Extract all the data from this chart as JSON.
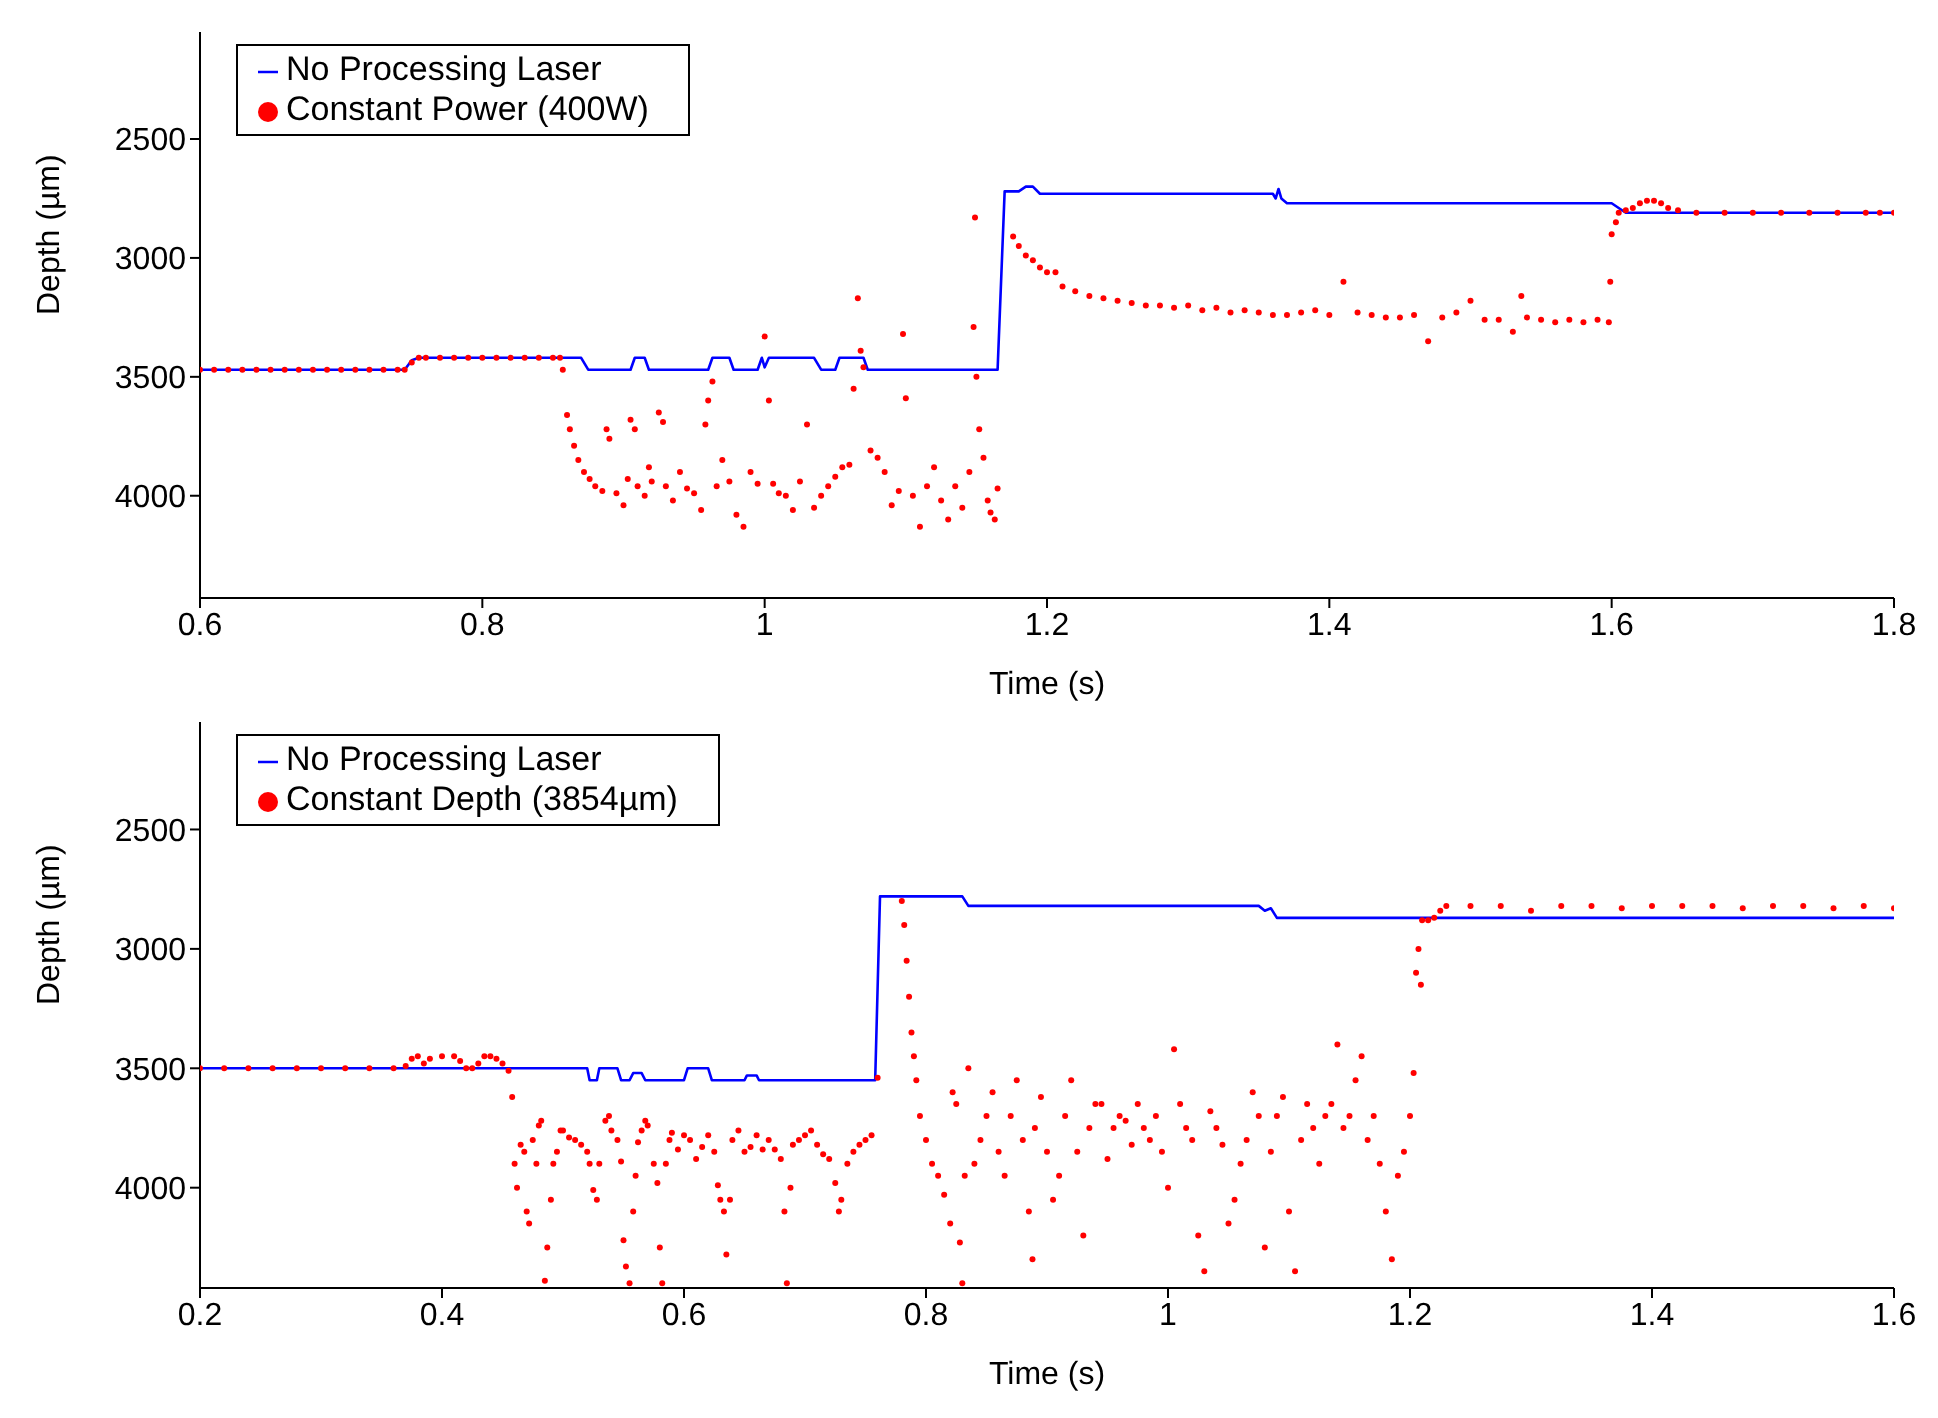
{
  "chart_data": [
    {
      "type": "line",
      "xlabel": "Time (s)",
      "ylabel": "Depth (µm)",
      "xlim": [
        0.6,
        1.8
      ],
      "xticks": [
        0.6,
        0.8,
        1,
        1.2,
        1.4,
        1.6,
        1.8
      ],
      "ylim": [
        4430,
        2050
      ],
      "yticks": [
        2500,
        3000,
        3500,
        4000
      ],
      "grid": false,
      "legend": "top left",
      "series": [
        {
          "name": "No Processing Laser",
          "type": "line",
          "marker": "none",
          "line_style": "solid",
          "color": "#0000ff",
          "x": [
            0.6,
            0.745,
            0.75,
            0.755,
            0.855,
            0.87,
            0.875,
            0.905,
            0.908,
            0.915,
            0.918,
            0.96,
            0.963,
            0.975,
            0.978,
            0.995,
            0.998,
            1.0,
            1.003,
            1.035,
            1.04,
            1.05,
            1.053,
            1.07,
            1.073,
            1.165,
            1.17,
            1.18,
            1.185,
            1.19,
            1.195,
            1.36,
            1.362,
            1.364,
            1.366,
            1.37,
            1.6,
            1.605,
            1.61,
            1.8
          ],
          "values": [
            3470,
            3470,
            3430,
            3420,
            3420,
            3420,
            3470,
            3470,
            3420,
            3420,
            3470,
            3470,
            3420,
            3420,
            3470,
            3470,
            3420,
            3460,
            3420,
            3420,
            3470,
            3470,
            3420,
            3420,
            3470,
            3470,
            2720,
            2720,
            2700,
            2700,
            2730,
            2730,
            2750,
            2710,
            2750,
            2770,
            2770,
            2790,
            2810,
            2810
          ]
        },
        {
          "name": "Constant Power (400W)",
          "type": "scatter",
          "marker": "circle",
          "color": "#ff0000",
          "x": [
            0.6,
            0.61,
            0.62,
            0.63,
            0.64,
            0.65,
            0.66,
            0.67,
            0.68,
            0.69,
            0.7,
            0.71,
            0.72,
            0.73,
            0.74,
            0.745,
            0.75,
            0.755,
            0.76,
            0.77,
            0.78,
            0.79,
            0.8,
            0.81,
            0.82,
            0.83,
            0.84,
            0.85,
            0.855,
            0.857,
            0.86,
            0.862,
            0.865,
            0.868,
            0.872,
            0.876,
            0.88,
            0.885,
            0.888,
            0.89,
            0.895,
            0.9,
            0.903,
            0.905,
            0.908,
            0.91,
            0.915,
            0.918,
            0.92,
            0.925,
            0.928,
            0.93,
            0.935,
            0.94,
            0.945,
            0.95,
            0.955,
            0.958,
            0.96,
            0.963,
            0.966,
            0.97,
            0.975,
            0.98,
            0.985,
            0.99,
            0.995,
            1.0,
            1.003,
            1.006,
            1.01,
            1.015,
            1.02,
            1.025,
            1.03,
            1.035,
            1.04,
            1.045,
            1.05,
            1.055,
            1.06,
            1.063,
            1.066,
            1.068,
            1.07,
            1.075,
            1.08,
            1.085,
            1.09,
            1.095,
            1.098,
            1.1,
            1.105,
            1.11,
            1.115,
            1.12,
            1.125,
            1.13,
            1.135,
            1.14,
            1.145,
            1.148,
            1.149,
            1.15,
            1.152,
            1.155,
            1.158,
            1.16,
            1.163,
            1.165,
            1.176,
            1.18,
            1.185,
            1.19,
            1.195,
            1.2,
            1.206,
            1.211,
            1.22,
            1.23,
            1.24,
            1.25,
            1.26,
            1.27,
            1.28,
            1.29,
            1.3,
            1.31,
            1.32,
            1.33,
            1.34,
            1.35,
            1.36,
            1.37,
            1.38,
            1.39,
            1.4,
            1.41,
            1.42,
            1.43,
            1.44,
            1.45,
            1.46,
            1.47,
            1.48,
            1.49,
            1.5,
            1.51,
            1.52,
            1.53,
            1.536,
            1.54,
            1.55,
            1.56,
            1.57,
            1.58,
            1.59,
            1.598,
            1.599,
            1.6,
            1.603,
            1.605,
            1.61,
            1.615,
            1.62,
            1.625,
            1.63,
            1.635,
            1.64,
            1.647,
            1.66,
            1.68,
            1.7,
            1.72,
            1.74,
            1.76,
            1.78,
            1.79,
            1.8
          ],
          "values": [
            3470,
            3470,
            3470,
            3470,
            3470,
            3470,
            3470,
            3470,
            3470,
            3470,
            3470,
            3470,
            3470,
            3470,
            3470,
            3470,
            3440,
            3420,
            3420,
            3420,
            3420,
            3420,
            3420,
            3420,
            3420,
            3420,
            3420,
            3420,
            3420,
            3470,
            3660,
            3720,
            3790,
            3850,
            3900,
            3930,
            3960,
            3980,
            3720,
            3760,
            3990,
            4040,
            3930,
            3680,
            3720,
            3960,
            4000,
            3880,
            3940,
            3650,
            3690,
            3960,
            4020,
            3900,
            3970,
            3990,
            4060,
            3700,
            3600,
            3520,
            3960,
            3850,
            3940,
            4080,
            4130,
            3900,
            3950,
            3330,
            3600,
            3950,
            3990,
            4000,
            4060,
            3940,
            3700,
            4050,
            4000,
            3960,
            3920,
            3880,
            3870,
            3550,
            3170,
            3390,
            3460,
            3810,
            3840,
            3900,
            4040,
            3980,
            3320,
            3590,
            4000,
            4130,
            3960,
            3880,
            4020,
            4100,
            3960,
            4050,
            3900,
            3290,
            2830,
            3500,
            3720,
            3840,
            4020,
            4070,
            4100,
            3970,
            2910,
            2950,
            2990,
            3010,
            3040,
            3060,
            3060,
            3120,
            3140,
            3160,
            3170,
            3180,
            3190,
            3200,
            3200,
            3210,
            3200,
            3220,
            3210,
            3230,
            3220,
            3230,
            3240,
            3240,
            3230,
            3220,
            3240,
            3100,
            3230,
            3240,
            3250,
            3250,
            3240,
            3350,
            3250,
            3230,
            3180,
            3260,
            3260,
            3310,
            3160,
            3250,
            3260,
            3270,
            3260,
            3270,
            3260,
            3270,
            3100,
            2900,
            2850,
            2810,
            2800,
            2790,
            2770,
            2760,
            2760,
            2770,
            2790,
            2800,
            2810,
            2810,
            2810,
            2810,
            2810,
            2810,
            2810,
            2810,
            2810
          ]
        }
      ]
    },
    {
      "type": "line",
      "xlabel": "Time (s)",
      "ylabel": "Depth (µm)",
      "xlim": [
        0.2,
        1.6
      ],
      "xticks": [
        0.2,
        0.4,
        0.6,
        0.8,
        1,
        1.2,
        1.4,
        1.6
      ],
      "ylim": [
        4420,
        2050
      ],
      "yticks": [
        2500,
        3000,
        3500,
        4000
      ],
      "grid": false,
      "legend": "top left",
      "series": [
        {
          "name": "No Processing Laser",
          "type": "line",
          "marker": "none",
          "line_style": "solid",
          "color": "#0000ff",
          "x": [
            0.2,
            0.52,
            0.522,
            0.528,
            0.53,
            0.545,
            0.548,
            0.555,
            0.558,
            0.565,
            0.568,
            0.6,
            0.603,
            0.62,
            0.623,
            0.65,
            0.652,
            0.66,
            0.662,
            0.758,
            0.762,
            0.83,
            0.835,
            1.075,
            1.08,
            1.085,
            1.09,
            1.6
          ],
          "values": [
            3500,
            3500,
            3550,
            3550,
            3500,
            3500,
            3550,
            3550,
            3520,
            3520,
            3550,
            3550,
            3500,
            3500,
            3550,
            3550,
            3530,
            3530,
            3550,
            3550,
            2780,
            2780,
            2820,
            2820,
            2840,
            2830,
            2870,
            2870
          ]
        },
        {
          "name": "Constant Depth (3854µm)",
          "type": "scatter",
          "marker": "circle",
          "color": "#ff0000",
          "x": [
            0.2,
            0.22,
            0.24,
            0.26,
            0.28,
            0.3,
            0.32,
            0.34,
            0.36,
            0.37,
            0.375,
            0.38,
            0.385,
            0.39,
            0.4,
            0.41,
            0.415,
            0.42,
            0.425,
            0.43,
            0.435,
            0.44,
            0.445,
            0.45,
            0.455,
            0.458,
            0.46,
            0.462,
            0.465,
            0.468,
            0.47,
            0.472,
            0.475,
            0.478,
            0.48,
            0.482,
            0.485,
            0.487,
            0.49,
            0.492,
            0.495,
            0.498,
            0.5,
            0.505,
            0.51,
            0.515,
            0.52,
            0.522,
            0.525,
            0.528,
            0.53,
            0.535,
            0.538,
            0.54,
            0.545,
            0.548,
            0.55,
            0.552,
            0.555,
            0.558,
            0.56,
            0.562,
            0.565,
            0.568,
            0.57,
            0.575,
            0.578,
            0.58,
            0.582,
            0.585,
            0.588,
            0.59,
            0.595,
            0.6,
            0.605,
            0.61,
            0.615,
            0.62,
            0.625,
            0.628,
            0.63,
            0.633,
            0.635,
            0.638,
            0.64,
            0.645,
            0.65,
            0.655,
            0.66,
            0.665,
            0.67,
            0.675,
            0.68,
            0.683,
            0.685,
            0.688,
            0.69,
            0.695,
            0.7,
            0.705,
            0.71,
            0.715,
            0.72,
            0.725,
            0.728,
            0.73,
            0.735,
            0.74,
            0.745,
            0.75,
            0.755,
            0.76,
            0.78,
            0.782,
            0.784,
            0.786,
            0.788,
            0.79,
            0.792,
            0.795,
            0.8,
            0.805,
            0.81,
            0.815,
            0.82,
            0.822,
            0.825,
            0.828,
            0.83,
            0.832,
            0.835,
            0.84,
            0.845,
            0.85,
            0.855,
            0.86,
            0.865,
            0.87,
            0.875,
            0.88,
            0.885,
            0.888,
            0.89,
            0.895,
            0.9,
            0.905,
            0.91,
            0.915,
            0.92,
            0.925,
            0.93,
            0.935,
            0.94,
            0.945,
            0.95,
            0.955,
            0.96,
            0.965,
            0.97,
            0.975,
            0.98,
            0.985,
            0.99,
            0.995,
            1.0,
            1.005,
            1.01,
            1.015,
            1.02,
            1.025,
            1.03,
            1.035,
            1.04,
            1.045,
            1.05,
            1.055,
            1.06,
            1.065,
            1.07,
            1.075,
            1.08,
            1.085,
            1.09,
            1.095,
            1.1,
            1.105,
            1.11,
            1.115,
            1.12,
            1.125,
            1.13,
            1.135,
            1.14,
            1.145,
            1.15,
            1.155,
            1.16,
            1.165,
            1.17,
            1.175,
            1.18,
            1.185,
            1.19,
            1.195,
            1.2,
            1.203,
            1.205,
            1.207,
            1.209,
            1.21,
            1.215,
            1.22,
            1.225,
            1.23,
            1.25,
            1.275,
            1.3,
            1.325,
            1.35,
            1.375,
            1.4,
            1.425,
            1.45,
            1.475,
            1.5,
            1.525,
            1.55,
            1.575,
            1.6
          ],
          "values": [
            3500,
            3500,
            3500,
            3500,
            3500,
            3500,
            3500,
            3500,
            3500,
            3490,
            3460,
            3450,
            3480,
            3460,
            3450,
            3450,
            3470,
            3500,
            3500,
            3480,
            3450,
            3450,
            3460,
            3480,
            3510,
            3620,
            3900,
            4000,
            3820,
            3850,
            4100,
            4150,
            3800,
            3900,
            3740,
            3720,
            4390,
            4250,
            4050,
            3900,
            3850,
            3760,
            3760,
            3790,
            3800,
            3820,
            3850,
            3900,
            4010,
            4050,
            3900,
            3720,
            3700,
            3760,
            3800,
            3890,
            4220,
            4330,
            4400,
            4100,
            3950,
            3810,
            3760,
            3720,
            3740,
            3900,
            3980,
            4250,
            4400,
            3900,
            3800,
            3770,
            3840,
            3780,
            3800,
            3880,
            3830,
            3780,
            3850,
            3990,
            4050,
            4100,
            4280,
            4050,
            3800,
            3760,
            3850,
            3830,
            3780,
            3840,
            3800,
            3840,
            3880,
            4100,
            4400,
            4000,
            3820,
            3800,
            3780,
            3760,
            3820,
            3860,
            3880,
            3980,
            4100,
            4050,
            3900,
            3850,
            3820,
            3800,
            3780,
            3540,
            2800,
            2900,
            3050,
            3200,
            3350,
            3450,
            3550,
            3700,
            3800,
            3900,
            3950,
            4030,
            4150,
            3600,
            3650,
            4230,
            4400,
            3950,
            3500,
            3900,
            3800,
            3700,
            3600,
            3850,
            3950,
            3700,
            3550,
            3800,
            4100,
            4300,
            3750,
            3620,
            3850,
            4050,
            3950,
            3700,
            3550,
            3850,
            4200,
            3750,
            3650,
            3650,
            3880,
            3750,
            3700,
            3720,
            3820,
            3650,
            3750,
            3800,
            3700,
            3850,
            4000,
            3420,
            3650,
            3750,
            3800,
            4200,
            4350,
            3680,
            3750,
            3820,
            4150,
            4050,
            3900,
            3800,
            3600,
            3700,
            4250,
            3850,
            3700,
            3620,
            4100,
            4350,
            3800,
            3650,
            3750,
            3900,
            3700,
            3650,
            3400,
            3750,
            3700,
            3550,
            3450,
            3800,
            3700,
            3900,
            4100,
            4300,
            3950,
            3850,
            3700,
            3520,
            3100,
            3000,
            3150,
            2880,
            2880,
            2870,
            2840,
            2820,
            2820,
            2820,
            2840,
            2820,
            2820,
            2830,
            2820,
            2820,
            2820,
            2830,
            2820,
            2820,
            2830,
            2820,
            2830
          ]
        }
      ]
    }
  ]
}
